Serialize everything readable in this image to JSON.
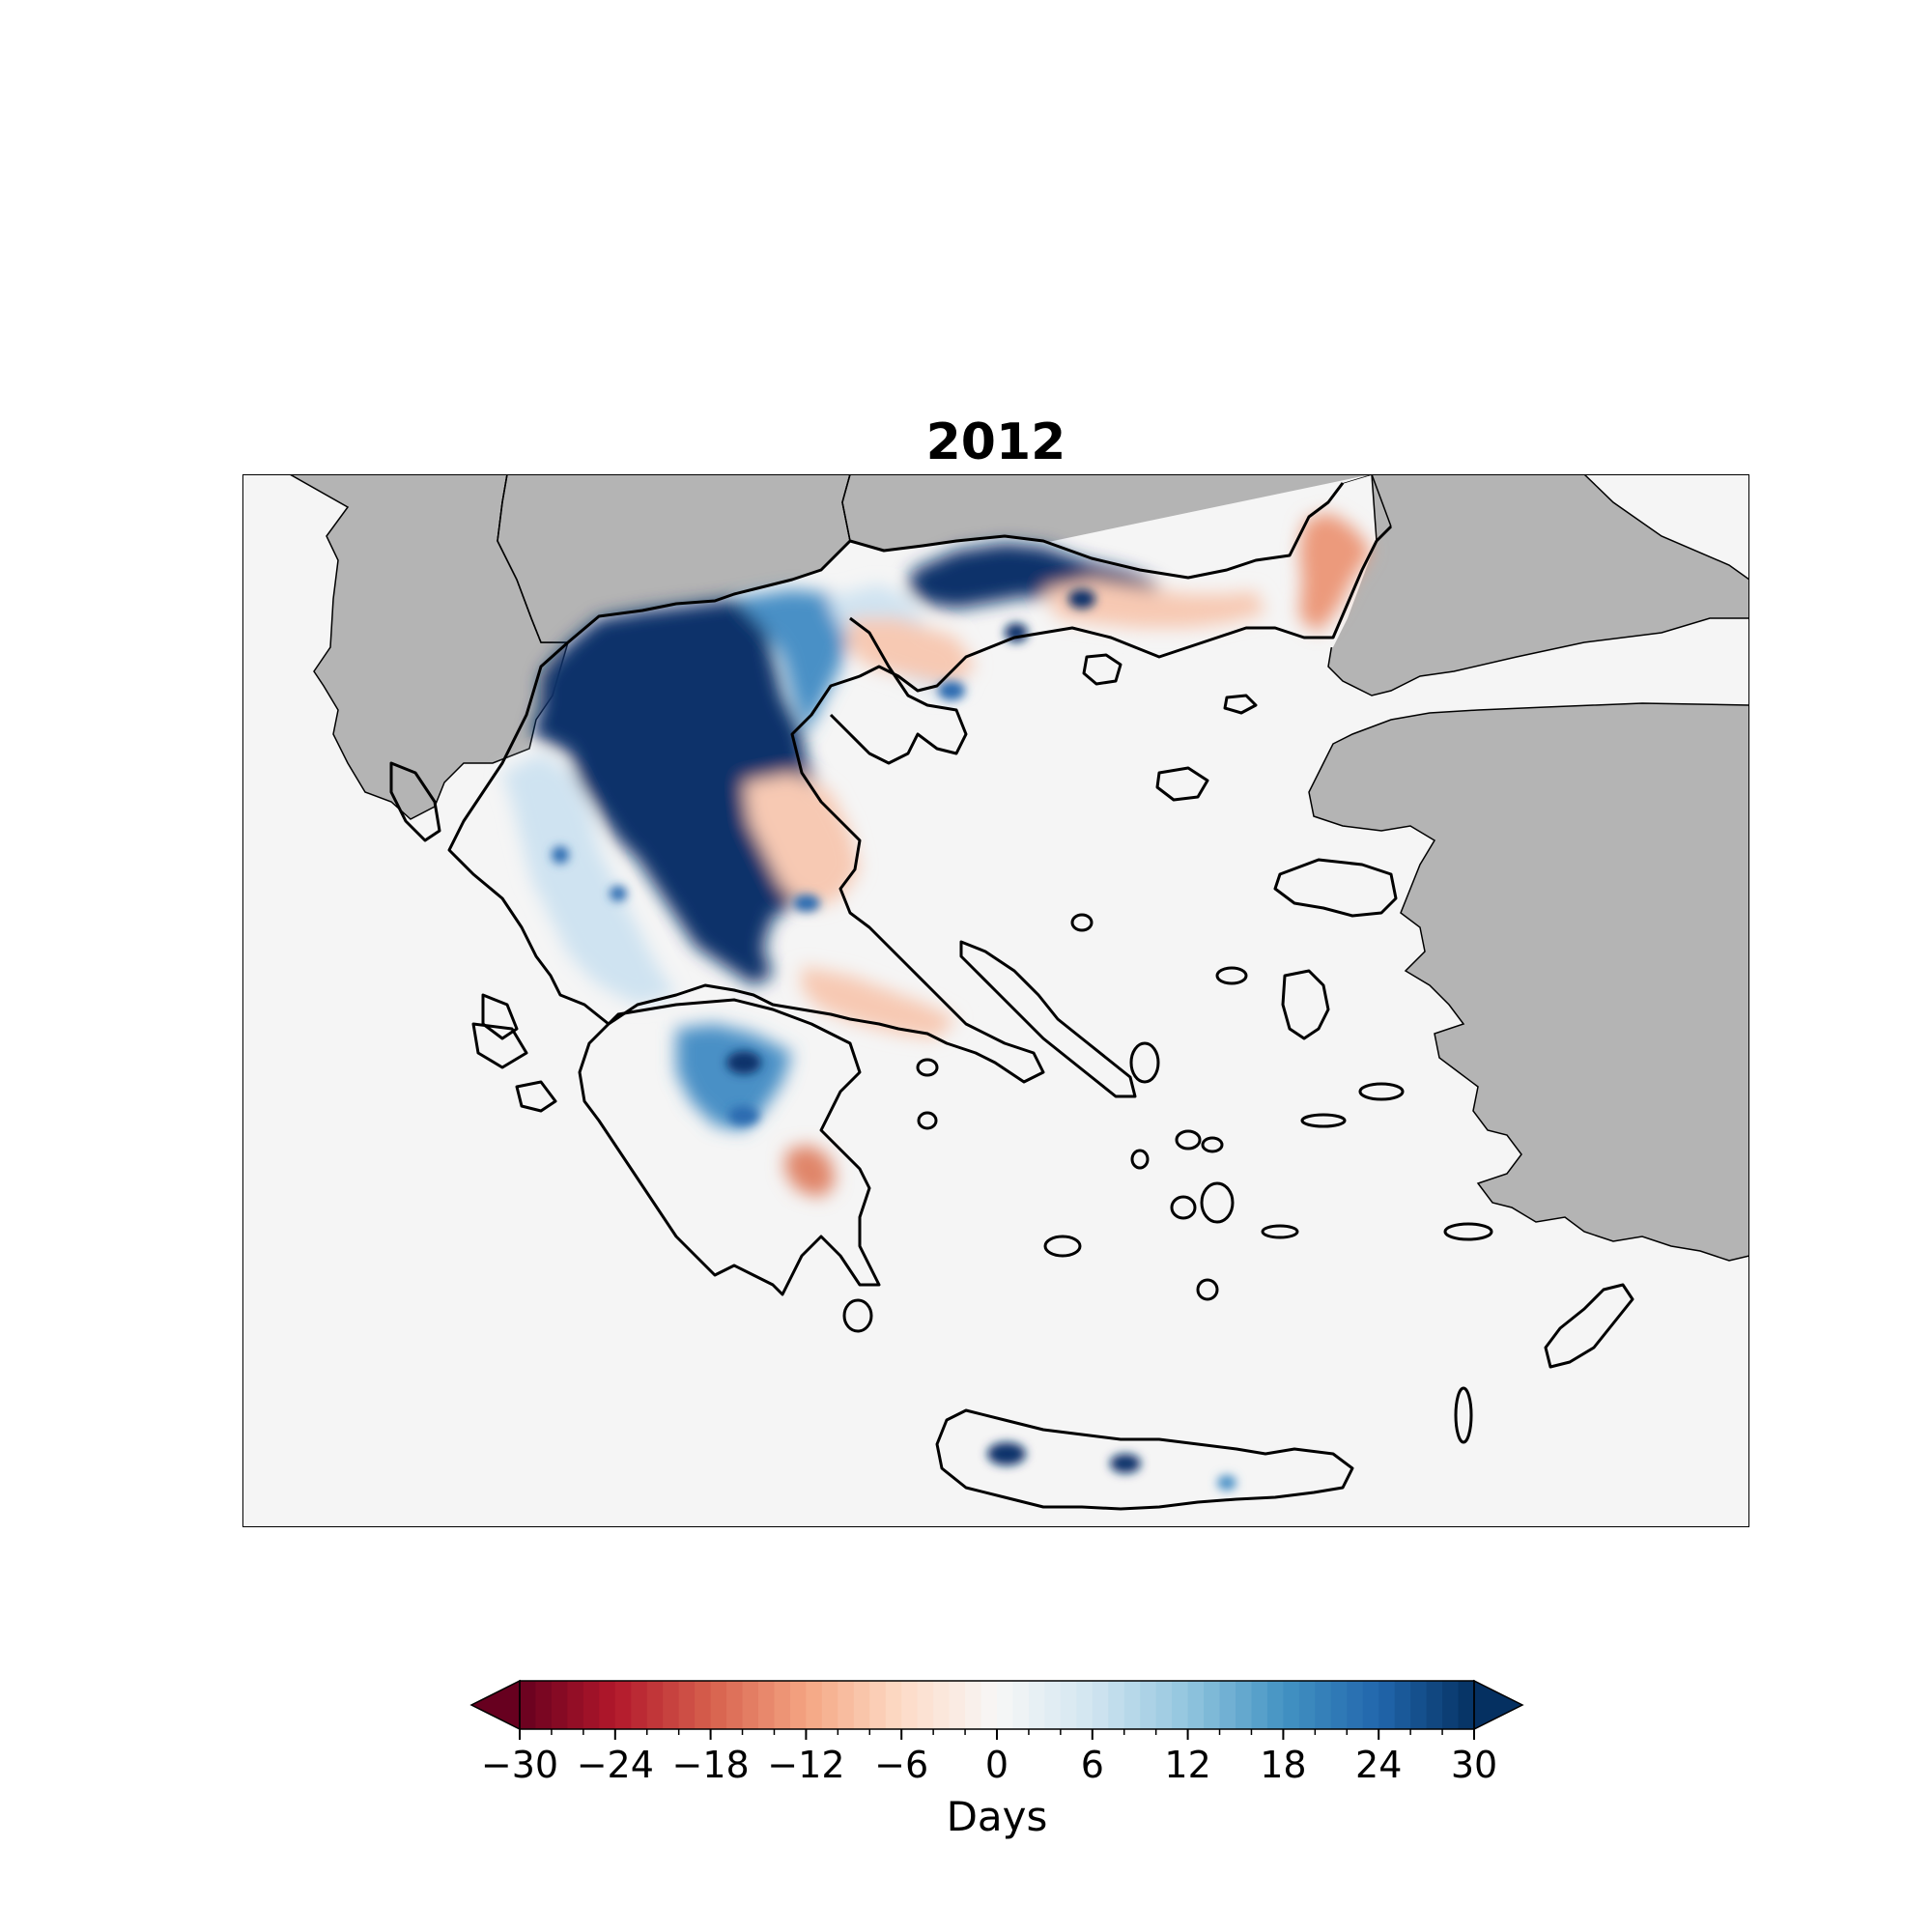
{
  "title": "2012",
  "map": {
    "region": "Greece and Aegean",
    "colors": {
      "background": "#f5f5f5",
      "neighbor_land": "#b4b4b4",
      "coastline": "#000000",
      "strong_positive": "#08306b",
      "mid_positive": "#4a90c6",
      "light_positive": "#cfe3f1",
      "light_negative": "#f7c9b3",
      "mid_negative": "#e08569"
    },
    "anomaly_regions": [
      {
        "name": "Western Macedonia / Epirus",
        "value_days": 30
      },
      {
        "name": "Central Macedonia",
        "value_days": 18
      },
      {
        "name": "Eastern Macedonia / Thrace",
        "value_days": 30
      },
      {
        "name": "Evros (northeast)",
        "value_days": -10
      },
      {
        "name": "Thessaly",
        "value_days": -4
      },
      {
        "name": "Central Peloponnese",
        "value_days": 18
      },
      {
        "name": "Eastern Peloponnese",
        "value_days": -14
      },
      {
        "name": "Western Crete",
        "value_days": 30
      },
      {
        "name": "Central Crete",
        "value_days": 30
      }
    ]
  },
  "colorbar": {
    "label": "Days",
    "min": -30,
    "max": 30,
    "extend": "both",
    "colormap": "RdBu",
    "tick_labels": [
      "−30",
      "−24",
      "−18",
      "−12",
      "−6",
      "0",
      "6",
      "12",
      "18",
      "24",
      "30"
    ],
    "tick_values": [
      -30,
      -24,
      -18,
      -12,
      -6,
      0,
      6,
      12,
      18,
      24,
      30
    ]
  }
}
